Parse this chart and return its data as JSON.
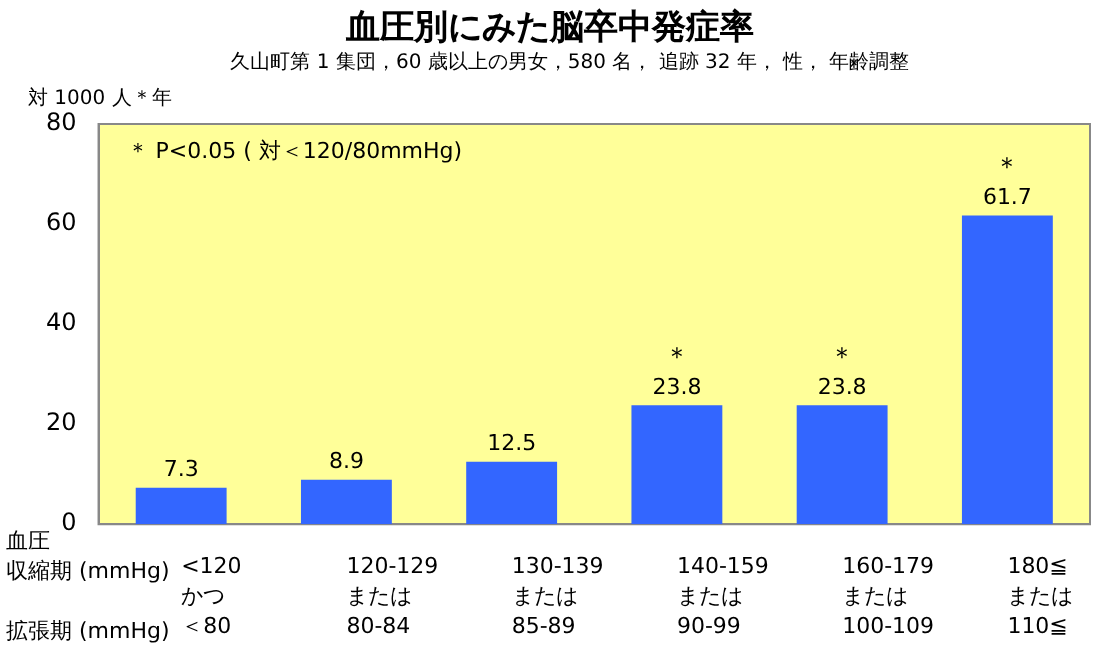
{
  "chart_data": {
    "type": "bar",
    "title": "血圧別にみた脳卒中発症率",
    "subtitle": "久山町第 1 集団，60 歳以上の男女，580 名， 追跡 32 年， 性， 年齢調整",
    "ylabel": "対 1000 人＊年",
    "categories": [
      "<120かつ＜80",
      "120-129または80-84",
      "130-139または85-89",
      "140-159または90-99",
      "160-179または100-109",
      "180≦または110≦"
    ],
    "values": [
      7.3,
      8.9,
      12.5,
      23.8,
      23.8,
      61.7
    ],
    "color": "#3366ff",
    "data_labels": true,
    "ylim": [
      0,
      80
    ],
    "yticks": [
      0,
      20,
      40,
      60,
      80
    ],
    "grid": false,
    "legend": false,
    "annotations": [
      "＊ P<0.05 ( 対＜120/80mmHg)",
      "血圧",
      "収縮期 (mmHg)",
      "拡張期 (mmHg)",
      {
        "text": "＊",
        "x": "140-159または90-99",
        "y": 23.8
      },
      {
        "text": "＊",
        "x": "160-179または100-109",
        "y": 23.8
      },
      {
        "text": "＊",
        "x": "180≦または110≦",
        "y": 61.7
      }
    ]
  }
}
